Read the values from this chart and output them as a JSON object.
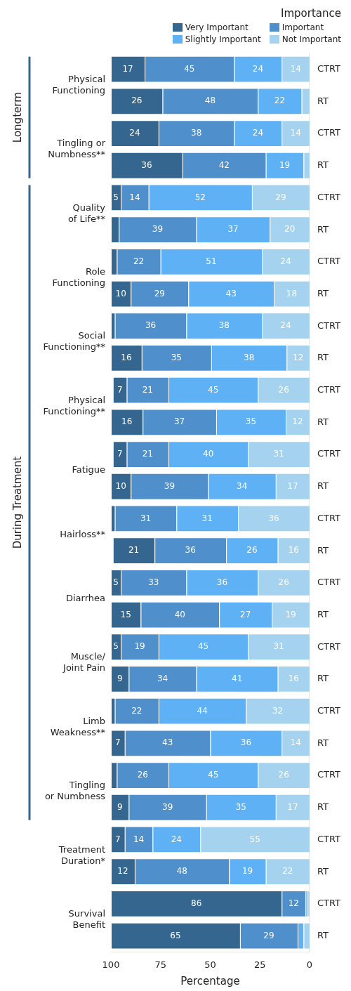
{
  "chart_data": {
    "type": "bar",
    "orientation": "horizontal",
    "stacked": true,
    "xlabel": "Percentage",
    "legend_title": "Importance",
    "legend": "top right",
    "grid": false,
    "xlim": [
      100,
      0
    ],
    "xticks": [
      100,
      75,
      50,
      25,
      0
    ],
    "categories": [
      "CTRT",
      "RT",
      "CTRT",
      "RT",
      "CTRT",
      "RT",
      "CTRT",
      "RT",
      "CTRT",
      "RT",
      "CTRT",
      "RT",
      "CTRT",
      "RT",
      "CTRT",
      "RT",
      "CTRT",
      "RT",
      "CTRT",
      "RT",
      "CTRT",
      "RT",
      "CTRT",
      "RT",
      "CTRT",
      "RT",
      "CTRT",
      "RT"
    ],
    "annotations": [
      "Physical Functioning",
      "Tingling or Numbness**",
      "Quality of Life**",
      "Role Functioning",
      "Social Functioning**",
      "Physical Functioning**",
      "Fatigue",
      "Hairloss**",
      "Diarrhea",
      "Muscle/ Joint Pain",
      "Limb Weakness**",
      "Tingling or Numbness",
      "Treatment Duration*",
      "Survival Benefit",
      "Longterm",
      "During Treatment"
    ],
    "series": [
      {
        "name": "Not Important",
        "color": "#a5d3ef",
        "values": [
          14,
          4,
          14,
          3,
          29,
          20,
          24,
          18,
          24,
          11.5,
          26,
          12,
          31,
          17,
          36,
          16,
          26,
          19,
          31,
          16,
          32,
          14,
          26,
          17,
          55,
          22,
          1,
          3
        ],
        "value_labels": [
          "14",
          null,
          "14",
          null,
          "29",
          "20",
          "24",
          "18",
          "24",
          "12",
          "26",
          "12",
          "31",
          "17",
          "36",
          "16",
          "26",
          "19",
          "31",
          "16",
          "32",
          "14",
          "26",
          "17",
          "55",
          "22",
          null,
          null
        ]
      },
      {
        "name": "Slightly Important",
        "color": "#5eb1f5",
        "values": [
          24,
          22,
          24,
          19,
          52,
          37,
          51,
          43,
          38,
          38,
          45,
          35,
          40,
          34,
          31,
          26,
          36,
          26.5,
          45,
          41,
          44,
          36,
          45,
          35,
          24,
          18.5,
          1,
          3
        ],
        "value_labels": [
          "24",
          "22",
          "24",
          "19",
          "52",
          "37",
          "51",
          "43",
          "38",
          "38",
          "45",
          "35",
          "40",
          "34",
          "31",
          "26",
          "36",
          "27",
          "45",
          "41",
          "44",
          "36",
          "45",
          "35",
          "24",
          "19",
          null,
          null
        ]
      },
      {
        "name": "Important",
        "color": "#4f8fcb",
        "values": [
          45,
          48,
          38,
          42,
          14,
          39,
          22,
          29,
          36,
          35,
          21,
          37,
          21,
          39,
          31,
          36,
          33,
          39.5,
          19,
          34,
          22,
          43,
          26,
          39,
          14,
          47.5,
          12,
          29
        ],
        "value_labels": [
          "45",
          "48",
          "38",
          "42",
          "14",
          "39",
          "22",
          "29",
          "36",
          "35",
          "21",
          "37",
          "21",
          "39",
          "31",
          "36",
          "33",
          "40",
          "19",
          "34",
          "22",
          "43",
          "26",
          "39",
          "14",
          "48",
          "12",
          "29"
        ]
      },
      {
        "name": "Very Important",
        "color": "#35668f",
        "values": [
          17,
          26,
          24,
          36,
          5,
          4,
          3,
          10,
          2,
          15.5,
          7,
          16,
          7,
          10,
          2,
          21,
          5,
          15,
          5,
          9,
          2,
          7,
          3,
          9,
          7,
          12,
          86,
          65
        ],
        "value_labels": [
          "17",
          "26",
          "24",
          "36",
          "5",
          null,
          null,
          "10",
          null,
          "16",
          "7",
          "16",
          "7",
          "10",
          null,
          "21",
          "5",
          "15",
          "5",
          "9",
          null,
          "7",
          null,
          "9",
          "7",
          "12",
          "86",
          "65"
        ]
      }
    ]
  }
}
